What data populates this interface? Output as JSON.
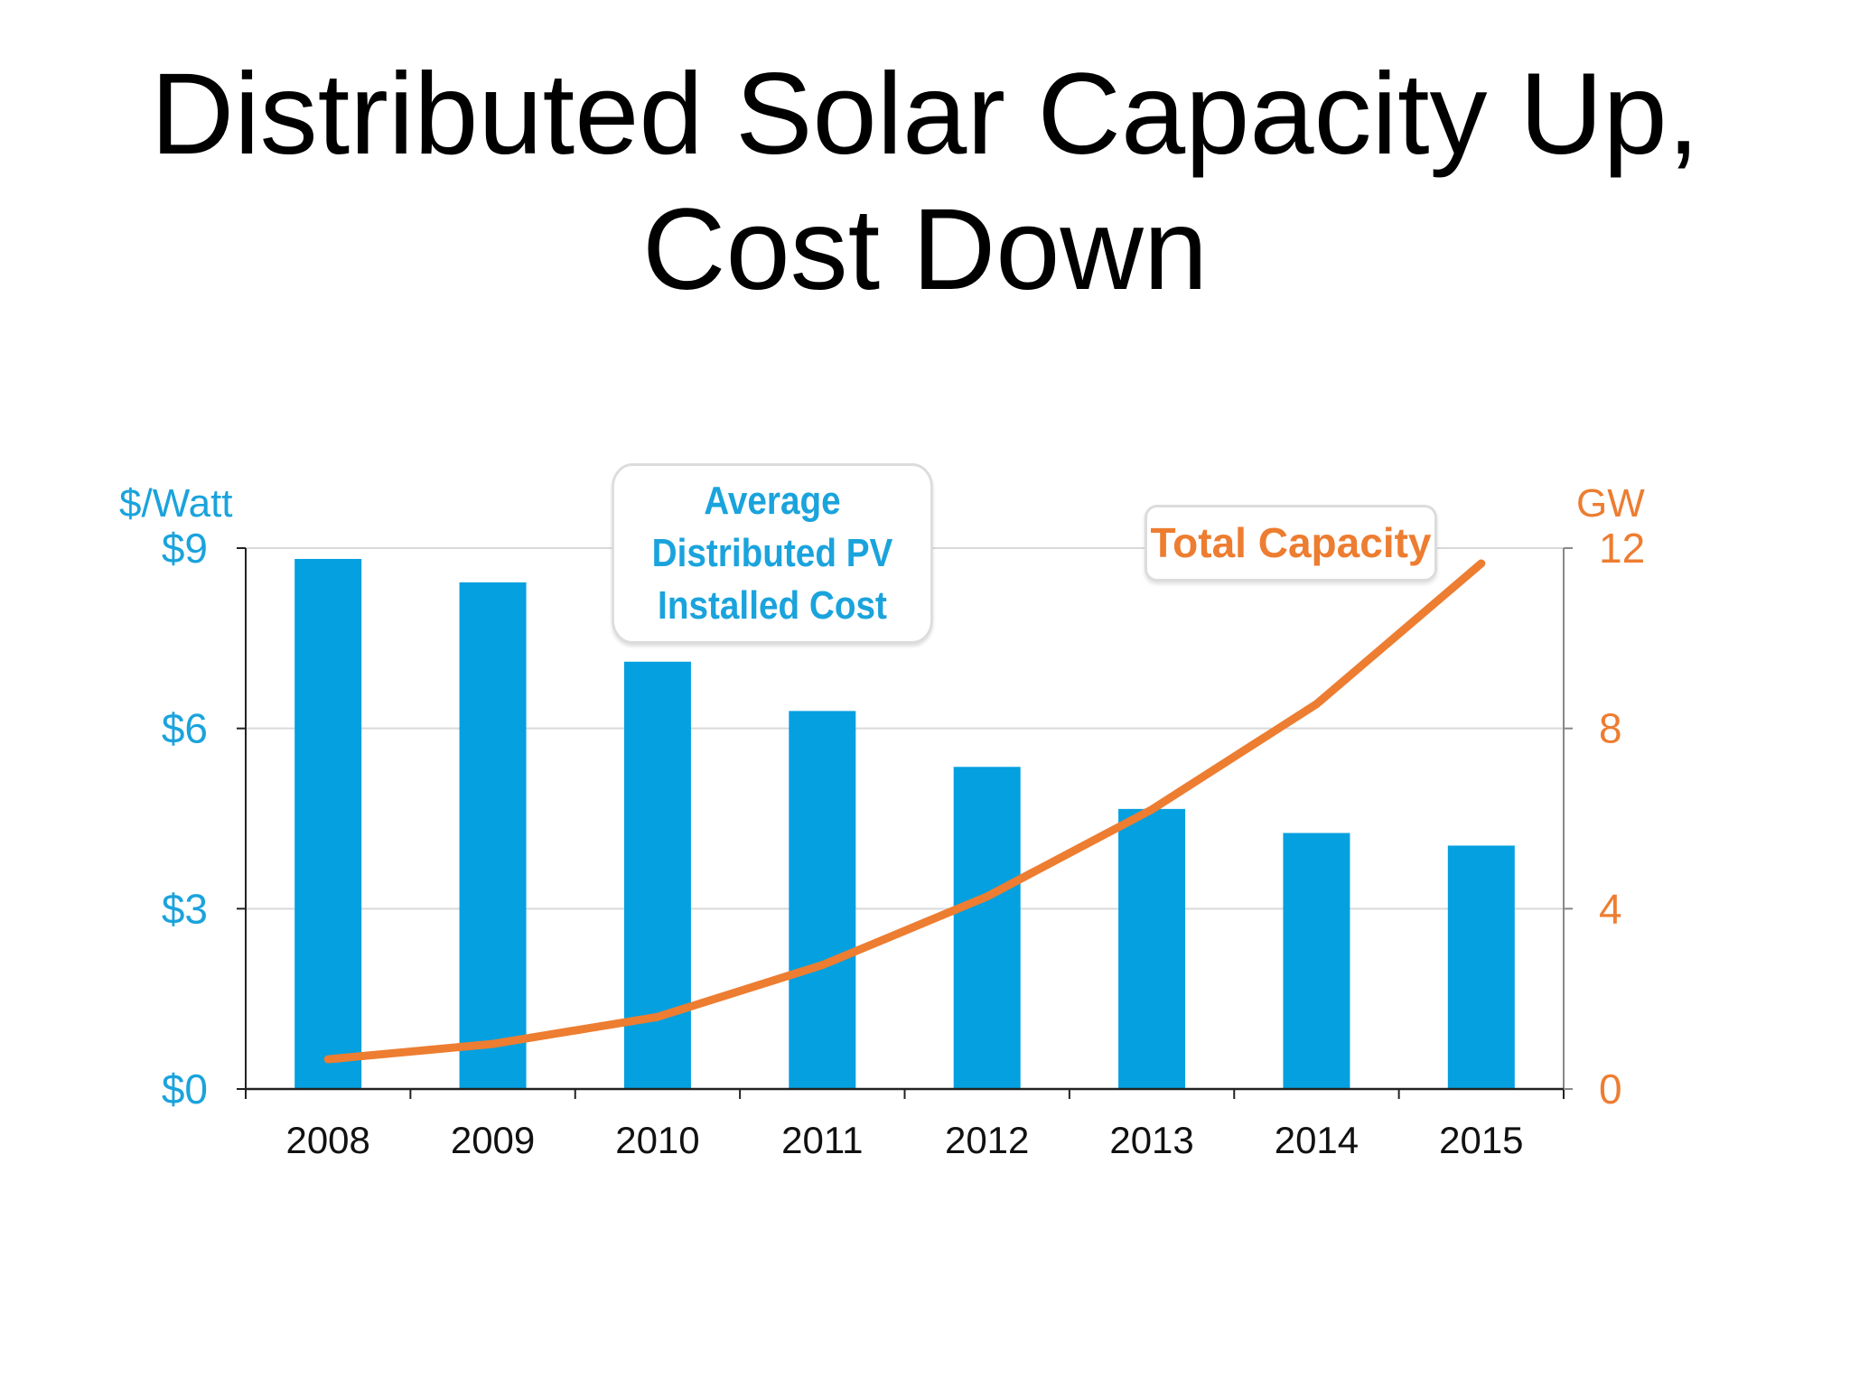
{
  "title_line1": "Distributed Solar Capacity Up,",
  "title_line2": "Cost Down",
  "chart_data": {
    "type": "bar",
    "categories": [
      "2008",
      "2009",
      "2010",
      "2011",
      "2012",
      "2013",
      "2014",
      "2015"
    ],
    "series": [
      {
        "name": "Average Distributed PV Installed Cost",
        "type": "bar",
        "axis": "left",
        "color": "#04a0e0",
        "values": [
          8.82,
          8.43,
          7.11,
          6.29,
          5.36,
          4.66,
          4.26,
          4.05
        ]
      },
      {
        "name": "Total Capacity",
        "type": "line",
        "axis": "right",
        "color": "#ed7d31",
        "values": [
          0.66,
          1.0,
          1.6,
          2.75,
          4.27,
          6.2,
          8.54,
          11.66
        ]
      }
    ],
    "left_axis": {
      "label": "$/Watt",
      "ylim": [
        0,
        9
      ],
      "ticks": [
        "$0",
        "$3",
        "$6",
        "$9"
      ],
      "tick_values": [
        0,
        3,
        6,
        9
      ],
      "color": "#1aa3dc"
    },
    "right_axis": {
      "label": "GW",
      "ylim": [
        0,
        12
      ],
      "ticks": [
        "0",
        "4",
        "8",
        "12"
      ],
      "tick_values": [
        0,
        4,
        8,
        12
      ],
      "color": "#ed7d31"
    },
    "grid": true,
    "callouts": {
      "bars": [
        "Average",
        "Distributed PV",
        "Installed Cost"
      ],
      "line": "Total Capacity"
    }
  }
}
